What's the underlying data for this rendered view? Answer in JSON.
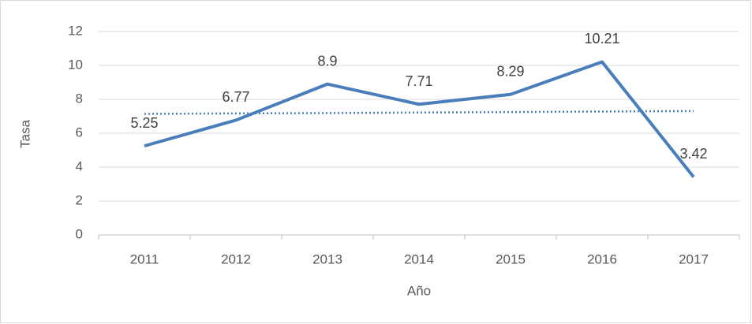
{
  "chart_data": {
    "type": "line",
    "x_label": "Año",
    "y_label": "Tasa",
    "categories": [
      "2011",
      "2012",
      "2013",
      "2014",
      "2015",
      "2016",
      "2017"
    ],
    "series": [
      {
        "color": "#4a7ebb",
        "style": "solid",
        "data_labels": true,
        "values": [
          5.25,
          6.77,
          8.9,
          7.71,
          8.29,
          10.21,
          3.42
        ]
      },
      {
        "color": "#4a7ebb",
        "style": "dotted",
        "data_labels": false,
        "values": [
          7.14,
          7.17,
          7.19,
          7.22,
          7.25,
          7.28,
          7.31
        ]
      }
    ],
    "ylim": [
      0,
      12
    ],
    "yticks": [
      0,
      2,
      4,
      6,
      8,
      10,
      12
    ],
    "grid": true
  }
}
